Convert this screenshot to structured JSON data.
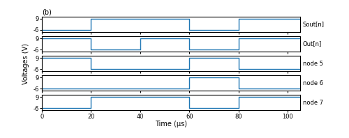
{
  "chart_data": [
    {
      "type": "line",
      "title": "(b)",
      "line_style": "step",
      "x": [
        0,
        20,
        20,
        60,
        60,
        80,
        80,
        105
      ],
      "values": [
        -6,
        -6,
        9,
        9,
        -6,
        -6,
        9,
        9
      ],
      "annotations": [
        "Sout[n]"
      ],
      "xlim": [
        0,
        105
      ],
      "xticks": [
        0,
        20,
        40,
        60,
        80,
        100
      ],
      "ylim": [
        -9,
        12
      ],
      "yticks": [
        -6,
        9
      ],
      "tick_labels": "y",
      "grid": false
    },
    {
      "type": "line",
      "line_style": "step",
      "x": [
        0,
        0,
        20,
        20,
        40,
        40,
        60,
        60,
        80,
        80,
        105
      ],
      "values": [
        9,
        9,
        9,
        -6,
        -6,
        9,
        9,
        -6,
        -6,
        9,
        9
      ],
      "annotations": [
        "Out[n]"
      ],
      "xlim": [
        0,
        105
      ],
      "xticks": [
        0,
        20,
        40,
        60,
        80,
        100
      ],
      "ylim": [
        -9,
        12
      ],
      "yticks": [
        -6,
        9
      ],
      "tick_labels": "y",
      "grid": false
    },
    {
      "type": "line",
      "line_style": "step",
      "y_label": "Voltages (V)",
      "x": [
        0,
        20,
        20,
        60,
        60,
        80,
        80,
        105
      ],
      "values": [
        9,
        9,
        -6,
        -6,
        9,
        9,
        -6,
        -6
      ],
      "annotations": [
        "node 5"
      ],
      "xlim": [
        0,
        105
      ],
      "xticks": [
        0,
        20,
        40,
        60,
        80,
        100
      ],
      "ylim": [
        -9,
        12
      ],
      "yticks": [
        -6,
        9
      ],
      "tick_labels": "y",
      "grid": false
    },
    {
      "type": "line",
      "line_style": "step",
      "x": [
        0,
        60,
        60,
        80,
        80,
        105
      ],
      "values": [
        -6,
        -6,
        9,
        9,
        -6,
        -6
      ],
      "annotations": [
        "node 6"
      ],
      "xlim": [
        0,
        105
      ],
      "xticks": [
        0,
        20,
        40,
        60,
        80,
        100
      ],
      "ylim": [
        -9,
        12
      ],
      "yticks": [
        -6,
        9
      ],
      "tick_labels": "y",
      "grid": false
    },
    {
      "type": "line",
      "line_style": "step",
      "x_label": "Time (μs)",
      "x": [
        0,
        20,
        20,
        60,
        60,
        80,
        80,
        105
      ],
      "values": [
        -6,
        -6,
        9,
        9,
        -6,
        -6,
        9,
        9
      ],
      "annotations": [
        "node 7"
      ],
      "xlim": [
        0,
        105
      ],
      "xticks": [
        0,
        20,
        40,
        60,
        80,
        100
      ],
      "ylim": [
        -9,
        12
      ],
      "yticks": [
        -6,
        9
      ],
      "grid": false
    }
  ]
}
